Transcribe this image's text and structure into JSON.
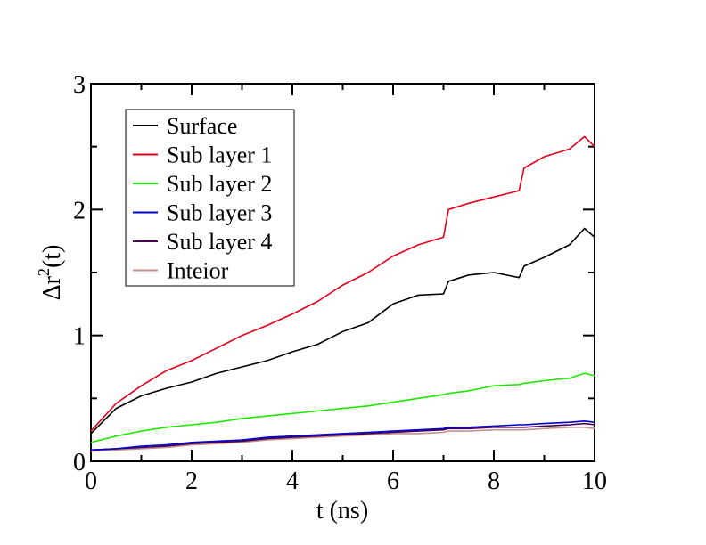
{
  "chart_data": {
    "type": "line",
    "xlabel": "t (ns)",
    "ylabel_parts": {
      "delta": "Δ",
      "r": "r",
      "sup": "2",
      "tail": "(t)"
    },
    "xlim": [
      0,
      10
    ],
    "ylim": [
      0,
      3
    ],
    "xticks": [
      0,
      2,
      4,
      6,
      8,
      10
    ],
    "xtick_labels": [
      "0",
      "2",
      "4",
      "6",
      "8",
      "10"
    ],
    "yticks": [
      0,
      1,
      2,
      3
    ],
    "ytick_labels": [
      "0",
      "1",
      "2",
      "3"
    ],
    "grid": false,
    "legend_position": "top-left",
    "x": [
      0,
      0.5,
      1,
      1.5,
      2,
      2.5,
      3,
      3.5,
      4,
      4.5,
      5,
      5.5,
      6,
      6.5,
      7,
      7.1,
      7.5,
      8,
      8.5,
      8.6,
      9,
      9.5,
      9.8,
      10
    ],
    "series": [
      {
        "name": "Surface",
        "color": "#000000",
        "values": [
          0.22,
          0.42,
          0.52,
          0.58,
          0.63,
          0.7,
          0.75,
          0.8,
          0.87,
          0.93,
          1.03,
          1.1,
          1.25,
          1.32,
          1.33,
          1.43,
          1.48,
          1.5,
          1.46,
          1.55,
          1.62,
          1.72,
          1.85,
          1.78
        ]
      },
      {
        "name": "Sub layer 1",
        "color": "#e3001b",
        "values": [
          0.24,
          0.46,
          0.6,
          0.72,
          0.8,
          0.9,
          1.0,
          1.08,
          1.17,
          1.27,
          1.4,
          1.5,
          1.63,
          1.72,
          1.78,
          2.0,
          2.05,
          2.1,
          2.15,
          2.33,
          2.42,
          2.48,
          2.58,
          2.5
        ]
      },
      {
        "name": "Sub layer 2",
        "color": "#1de800",
        "values": [
          0.15,
          0.2,
          0.24,
          0.27,
          0.29,
          0.31,
          0.34,
          0.36,
          0.38,
          0.4,
          0.42,
          0.44,
          0.47,
          0.5,
          0.53,
          0.54,
          0.56,
          0.6,
          0.61,
          0.62,
          0.64,
          0.66,
          0.7,
          0.68
        ]
      },
      {
        "name": "Sub layer 3",
        "color": "#0000cc",
        "values": [
          0.09,
          0.1,
          0.12,
          0.13,
          0.15,
          0.16,
          0.17,
          0.19,
          0.2,
          0.21,
          0.22,
          0.23,
          0.24,
          0.25,
          0.26,
          0.27,
          0.27,
          0.28,
          0.29,
          0.29,
          0.3,
          0.31,
          0.32,
          0.31
        ]
      },
      {
        "name": "Sub layer 4",
        "color": "#4b0050",
        "values": [
          0.09,
          0.1,
          0.11,
          0.12,
          0.14,
          0.15,
          0.16,
          0.18,
          0.19,
          0.2,
          0.21,
          0.22,
          0.23,
          0.24,
          0.25,
          0.26,
          0.26,
          0.27,
          0.27,
          0.27,
          0.28,
          0.29,
          0.3,
          0.29
        ]
      },
      {
        "name": "Inteior",
        "color": "#c2928f",
        "values": [
          0.08,
          0.09,
          0.1,
          0.11,
          0.13,
          0.14,
          0.15,
          0.17,
          0.18,
          0.19,
          0.2,
          0.21,
          0.22,
          0.22,
          0.23,
          0.24,
          0.24,
          0.25,
          0.25,
          0.25,
          0.26,
          0.27,
          0.27,
          0.26
        ]
      }
    ]
  }
}
